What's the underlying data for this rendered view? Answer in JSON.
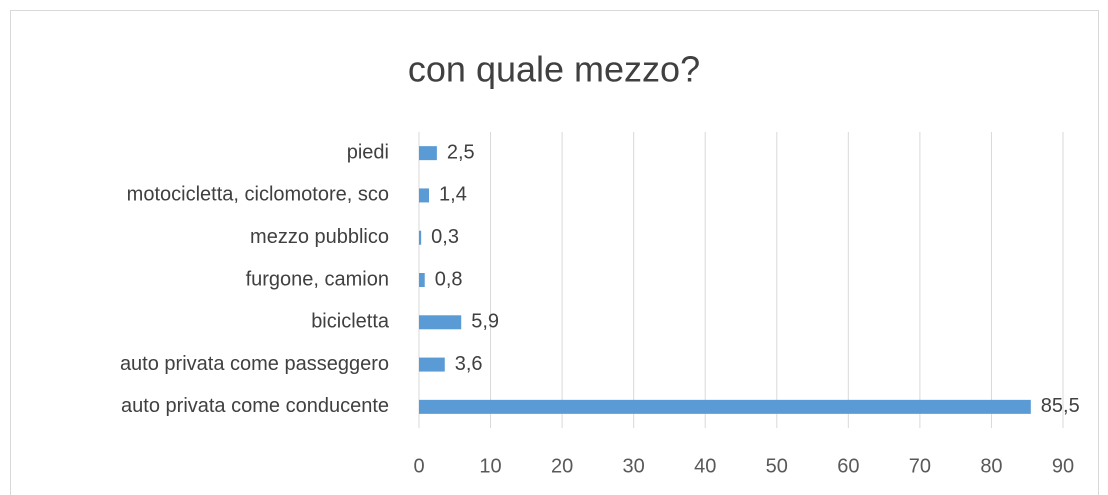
{
  "chart_data": {
    "type": "bar",
    "orientation": "horizontal",
    "title": "con quale mezzo?",
    "categories": [
      "piedi",
      "motocicletta, ciclomotore, sco",
      "mezzo pubblico",
      "furgone, camion",
      "bicicletta",
      "auto privata come passeggero",
      "auto privata come conducente"
    ],
    "values": [
      2.5,
      1.4,
      0.3,
      0.8,
      5.9,
      3.6,
      85.5
    ],
    "value_labels": [
      "2,5",
      "1,4",
      "0,3",
      "0,8",
      "5,9",
      "3,6",
      "85,5"
    ],
    "color": "#5b9bd5",
    "xlim": [
      0,
      90
    ],
    "xticks": [
      0,
      10,
      20,
      30,
      40,
      50,
      60,
      70,
      80,
      90
    ],
    "grid": true
  }
}
